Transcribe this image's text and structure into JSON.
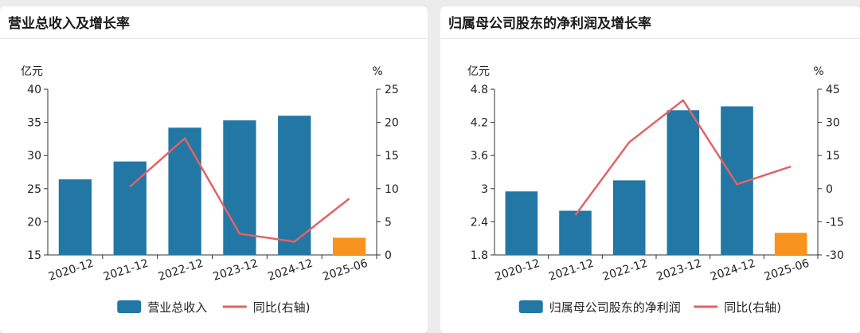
{
  "colors": {
    "bar": "#2277a5",
    "bar_highlight": "#f7931e",
    "line": "#e06464",
    "axis": "#333333"
  },
  "chart_data": [
    {
      "type": "bar",
      "title": "营业总收入及增长率",
      "ylabel": "亿元",
      "y2label": "%",
      "categories": [
        "2020-12",
        "2021-12",
        "2022-12",
        "2023-12",
        "2024-12",
        "2025-06"
      ],
      "series": [
        {
          "name": "营业总收入",
          "type": "bar",
          "axis": "left",
          "values": [
            26.4,
            29.1,
            34.2,
            35.3,
            36.0,
            17.6
          ]
        },
        {
          "name": "同比(右轴)",
          "type": "line",
          "axis": "right",
          "values": [
            null,
            10.3,
            17.6,
            3.2,
            2.0,
            8.5
          ]
        }
      ],
      "highlight_index": 5,
      "ylim": [
        15,
        40
      ],
      "yticks": [
        "15",
        "20",
        "25",
        "30",
        "35",
        "40"
      ],
      "y2lim": [
        0,
        25
      ],
      "y2ticks": [
        "0",
        "5",
        "10",
        "15",
        "20",
        "25"
      ],
      "legend": "bottom",
      "grid": false
    },
    {
      "type": "bar",
      "title": "归属母公司股东的净利润及增长率",
      "ylabel": "亿元",
      "y2label": "%",
      "categories": [
        "2020-12",
        "2021-12",
        "2022-12",
        "2023-12",
        "2024-12",
        "2025-06"
      ],
      "series": [
        {
          "name": "归属母公司股东的净利润",
          "type": "bar",
          "axis": "left",
          "values": [
            2.95,
            2.6,
            3.15,
            4.42,
            4.49,
            2.2
          ]
        },
        {
          "name": "同比(右轴)",
          "type": "line",
          "axis": "right",
          "values": [
            null,
            -12.0,
            21.0,
            40.0,
            2.0,
            10.0
          ]
        }
      ],
      "highlight_index": 5,
      "ylim": [
        1.8,
        4.8
      ],
      "yticks": [
        "1.8",
        "2.4",
        "3",
        "3.6",
        "4.2",
        "4.8"
      ],
      "y2lim": [
        -30,
        45
      ],
      "y2ticks": [
        "-30",
        "-15",
        "0",
        "15",
        "30",
        "45"
      ],
      "legend": "bottom",
      "grid": false
    }
  ]
}
